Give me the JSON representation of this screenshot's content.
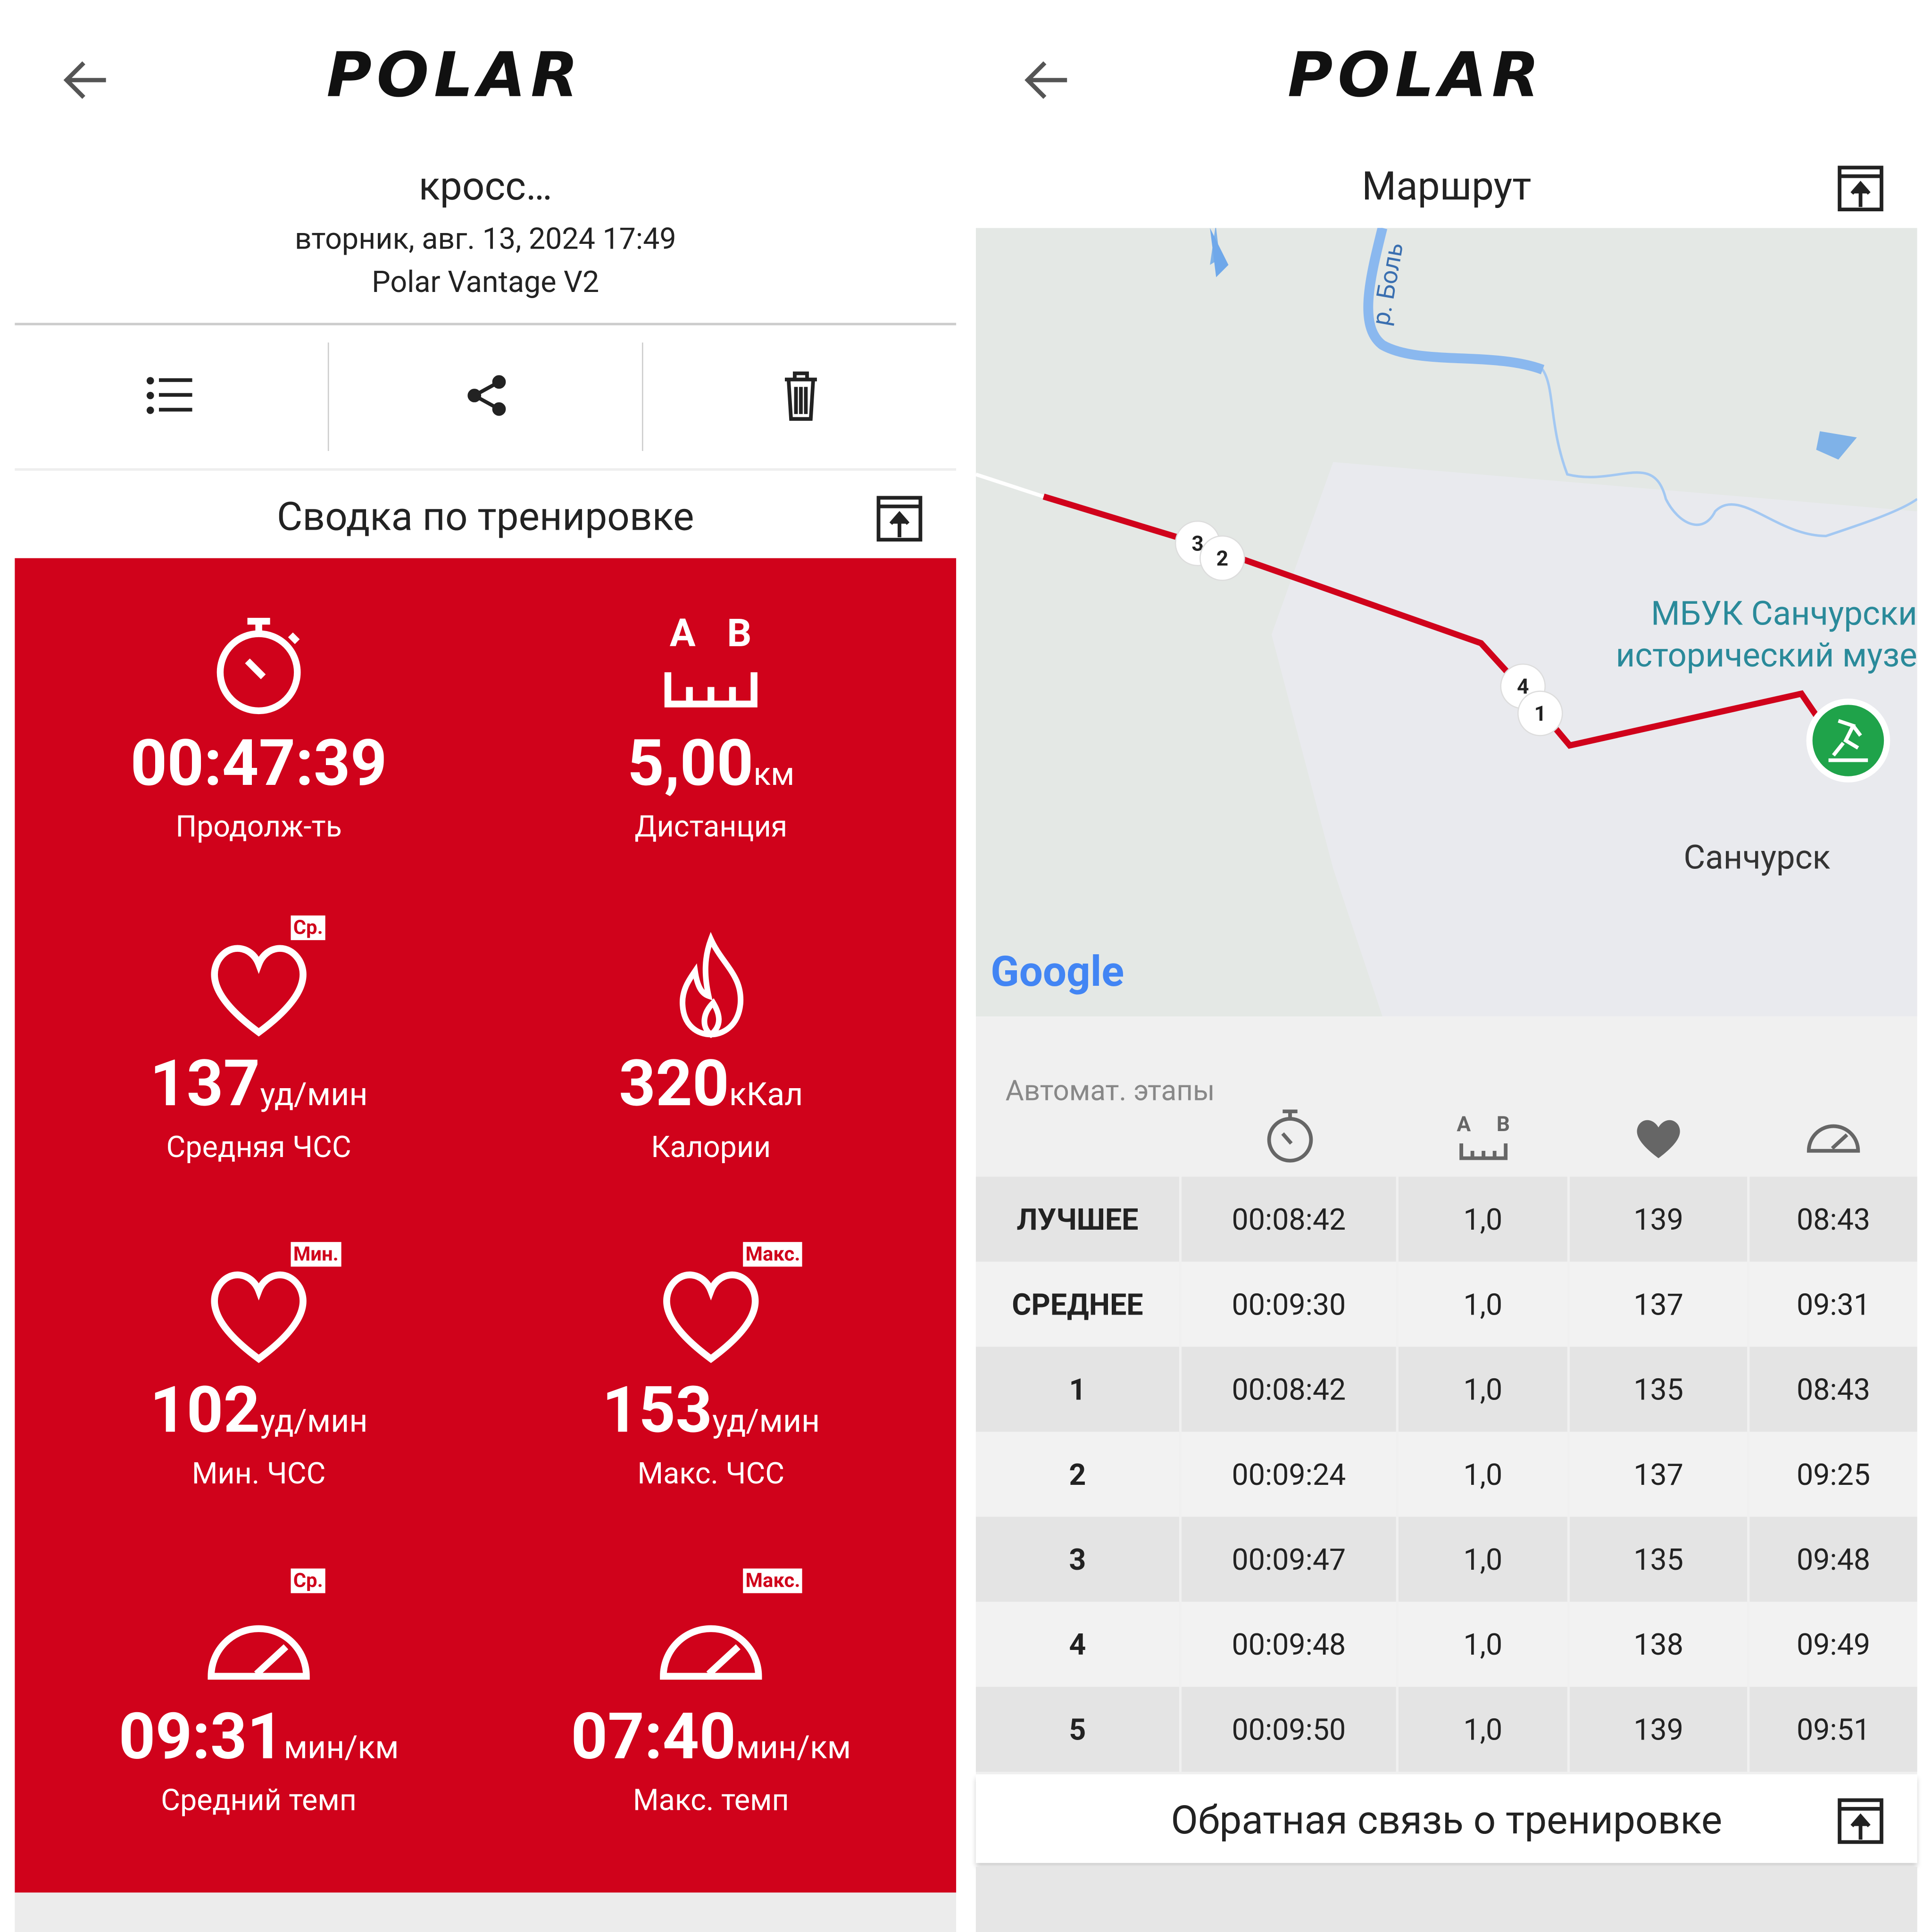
{
  "left": {
    "logo": "POLAR",
    "title": "кросс…",
    "date": "вторник, авг. 13, 2024 17:49",
    "device": "Polar Vantage V2",
    "section": "Сводка по тренировке",
    "distance_icon": [
      "A",
      "B"
    ],
    "stats": [
      {
        "value": "00:47:39",
        "label": "Продолж-ть"
      },
      {
        "value": "5,00",
        "unit": "км",
        "label": "Дистанция"
      },
      {
        "value": "137",
        "unit": "уд/мин",
        "label": "Средняя ЧСС",
        "badge": "Ср."
      },
      {
        "value": "320",
        "unit": "кКал",
        "label": "Калории"
      },
      {
        "value": "102",
        "unit": "уд/мин",
        "label": "Мин. ЧСС",
        "badge": "Мин."
      },
      {
        "value": "153",
        "unit": "уд/мин",
        "label": "Макс. ЧСС",
        "badge": "Макс."
      },
      {
        "value": "09:31",
        "unit": "мин/км",
        "label": "Средний темп",
        "badge": "Ср."
      },
      {
        "value": "07:40",
        "unit": "мин/км",
        "label": "Макс. темп",
        "badge": "Макс."
      }
    ]
  },
  "right": {
    "logo": "POLAR",
    "section": "Маршрут",
    "map": {
      "river": "р. Боль",
      "poi": [
        "МБУК Санчурски",
        "исторический музе"
      ],
      "town": "Санчурск",
      "provider": "Google",
      "markers": [
        "3",
        "2",
        "4",
        "1"
      ]
    },
    "laps": {
      "caption": "Автомат. этапы",
      "rows": [
        [
          "ЛУЧШЕЕ",
          "00:08:42",
          "1,0",
          "139",
          "08:43"
        ],
        [
          "СРЕДНЕЕ",
          "00:09:30",
          "1,0",
          "137",
          "09:31"
        ],
        [
          "1",
          "00:08:42",
          "1,0",
          "135",
          "08:43"
        ],
        [
          "2",
          "00:09:24",
          "1,0",
          "137",
          "09:25"
        ],
        [
          "3",
          "00:09:47",
          "1,0",
          "135",
          "09:48"
        ],
        [
          "4",
          "00:09:48",
          "1,0",
          "138",
          "09:49"
        ],
        [
          "5",
          "00:09:50",
          "1,0",
          "139",
          "09:51"
        ]
      ]
    },
    "feedback": "Обратная связь о тренировке"
  }
}
